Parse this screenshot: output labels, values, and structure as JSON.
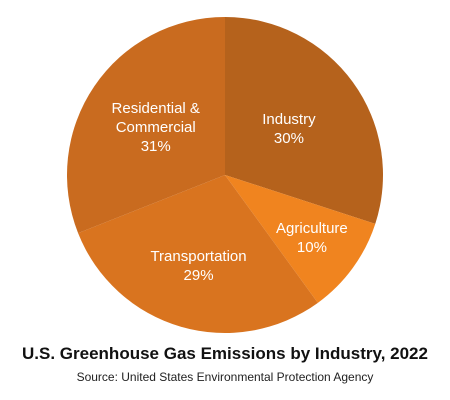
{
  "chart_data": {
    "type": "pie",
    "title": "U.S. Greenhouse Gas Emissions by Industry, 2022",
    "subtitle": "Source: United States Environmental Protection Agency",
    "categories": [
      "Industry",
      "Agriculture",
      "Transportation",
      "Residential & Commercial"
    ],
    "values": [
      30,
      10,
      29,
      31
    ],
    "value_labels": [
      "30%",
      "10%",
      "29%",
      "31%"
    ],
    "colors": [
      "#b5621c",
      "#f0841f",
      "#d9741f",
      "#c96b1f"
    ]
  }
}
